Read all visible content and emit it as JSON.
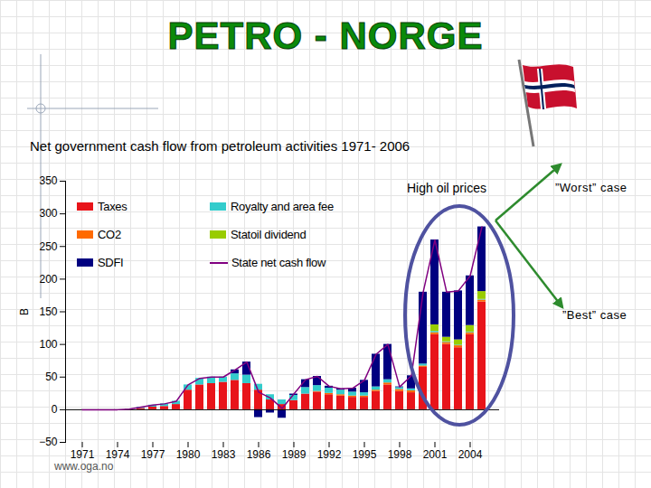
{
  "chart_data": {
    "type": "bar",
    "title": "PETRO - NORGE",
    "subtitle": "Net government cash flow from  petroleum activities 1971- 2006",
    "y_label": "B",
    "annotations": [
      "High oil prices",
      "”Worst” case",
      "”Best” case"
    ],
    "source": "www.oga.no",
    "stacked": true,
    "legend": "top-left",
    "grid": false,
    "categories": [
      "1971",
      null,
      null,
      "1974",
      null,
      null,
      "1977",
      null,
      null,
      "1980",
      null,
      null,
      "1983",
      null,
      null,
      "1986",
      null,
      null,
      "1989",
      null,
      null,
      "1992",
      null,
      null,
      "1995",
      null,
      null,
      "1998",
      null,
      null,
      "2001",
      null,
      null,
      "2004",
      null
    ],
    "ylim": [
      -50,
      350
    ],
    "yticks": [
      -50,
      0,
      50,
      100,
      150,
      200,
      250,
      300,
      350
    ],
    "series": [
      {
        "name": "Taxes",
        "color": "#e8141a",
        "type": "bar",
        "values": [
          0,
          0,
          0,
          0,
          0.5,
          2,
          4,
          5,
          8,
          30,
          38,
          40,
          42,
          45,
          40,
          30,
          15,
          8,
          14,
          24,
          27,
          23,
          21,
          19,
          19,
          28,
          38,
          28,
          26,
          65,
          115,
          100,
          95,
          115,
          165
        ]
      },
      {
        "name": "CO2",
        "color": "#ff6a00",
        "type": "bar",
        "values": [
          0,
          0,
          0,
          0,
          0,
          0,
          0,
          0,
          0,
          0,
          0,
          0,
          0,
          0,
          0,
          0,
          0,
          0,
          0,
          0,
          1,
          2,
          2,
          2,
          2,
          2,
          3,
          3,
          3,
          2,
          3,
          3,
          3,
          3,
          3
        ]
      },
      {
        "name": "Royalty and area fee",
        "color": "#33cccc",
        "type": "bar",
        "values": [
          0,
          0,
          0,
          0,
          0.5,
          2,
          3,
          4,
          5,
          8,
          10,
          10,
          8,
          10,
          13,
          9,
          8,
          7,
          8,
          10,
          9,
          8,
          7,
          6,
          5,
          5,
          5,
          3,
          3,
          3,
          2,
          1,
          1,
          1,
          1
        ]
      },
      {
        "name": "Statoil dividend",
        "color": "#99cc00",
        "type": "bar",
        "values": [
          0,
          0,
          0,
          0,
          0,
          0,
          0,
          0,
          0,
          0,
          0,
          0,
          0,
          0,
          0,
          0,
          0,
          0,
          0,
          0,
          0,
          0,
          0,
          0,
          0,
          0,
          0,
          0,
          0,
          0,
          10,
          7,
          8,
          10,
          12
        ]
      },
      {
        "name": "SDFI",
        "color": "#000080",
        "type": "bar",
        "values": [
          0,
          0,
          0,
          0,
          0,
          0,
          0,
          0,
          0,
          0,
          0,
          0,
          0,
          6,
          20,
          -12,
          -5,
          -13,
          2,
          12,
          14,
          3,
          2,
          6,
          19,
          50,
          54,
          1,
          20,
          110,
          130,
          69,
          75,
          76,
          99
        ]
      },
      {
        "name": "State net cash flow",
        "color": "#800080",
        "type": "line",
        "values": [
          0,
          0,
          0,
          0,
          1,
          4,
          7,
          9,
          13,
          38,
          48,
          50,
          50,
          61,
          73,
          27,
          18,
          2,
          24,
          46,
          51,
          36,
          32,
          33,
          45,
          85,
          100,
          35,
          52,
          180,
          260,
          180,
          182,
          205,
          280
        ]
      }
    ]
  }
}
